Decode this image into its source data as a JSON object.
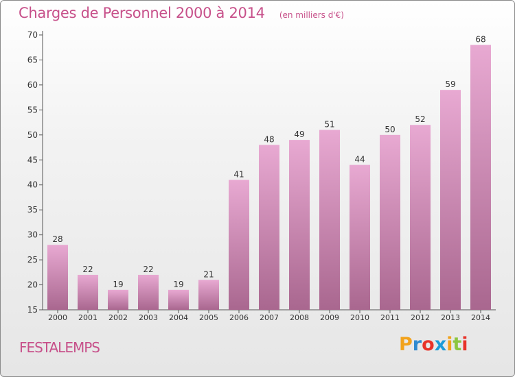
{
  "chart_data": {
    "type": "bar",
    "title": "Charges de Personnel 2000 à 2014",
    "subtitle": "(en milliers d'€)",
    "categories": [
      "2000",
      "2001",
      "2002",
      "2003",
      "2004",
      "2005",
      "2006",
      "2007",
      "2008",
      "2009",
      "2010",
      "2011",
      "2012",
      "2013",
      "2014"
    ],
    "values": [
      28,
      22,
      19,
      22,
      19,
      21,
      41,
      48,
      49,
      51,
      44,
      50,
      52,
      59,
      68
    ],
    "ylim": [
      15,
      70
    ],
    "yticks": [
      15,
      20,
      25,
      30,
      35,
      40,
      45,
      50,
      55,
      60,
      65,
      70
    ],
    "grid": false,
    "bar_color_top": "#e8a9d2",
    "bar_color_bottom": "#a9678f",
    "text_color": "#333333"
  },
  "footer": {
    "commune": "FESTALEMPS",
    "logo_letters": [
      "P",
      "r",
      "o",
      "x",
      "i",
      "t",
      "i"
    ],
    "logo_colors": [
      "#f2a21b",
      "#2f8ad0",
      "#e8332a",
      "#1c9bd7",
      "#f2a21b",
      "#8cc63f",
      "#e8332a"
    ]
  }
}
